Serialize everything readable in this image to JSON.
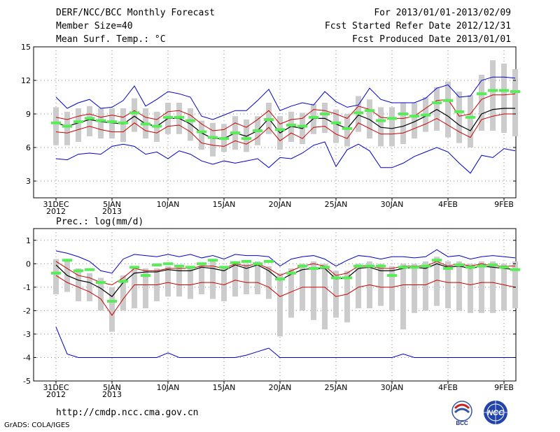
{
  "header": {
    "title": "DERF/NCC/BCC Monthly Forecast",
    "member_size": "Member Size=40",
    "variable": "Mean Surf. Temp.: °C",
    "period": "For 2013/01/01-2013/02/09",
    "started": "Fcst Started Refer Date 2012/12/31",
    "produced": "Fcst Produced Date 2013/01/01"
  },
  "precip_title": "Prec.: log(mm/d)",
  "footer": {
    "url": "http://cmdp.ncc.cma.gov.cn",
    "credit": "GrADS: COLA/IGES",
    "logo_left_text": "BCC",
    "logo_right_text": "NCC"
  },
  "colors": {
    "max_line": "#0000cc",
    "sd_line": "#cc0000",
    "mean_line": "#000000",
    "box": "#cccccc",
    "median_mark": "#55ee55"
  },
  "chart_data": [
    {
      "type": "box",
      "title": "Mean Surf. Temp.: °C",
      "x_ticks": [
        "31DEC\n2012",
        "5JAN\n2013",
        "10JAN",
        "15JAN",
        "20JAN",
        "25JAN",
        "30JAN",
        "4FEB",
        "9FEB"
      ],
      "x_tick_days": [
        0,
        5,
        10,
        15,
        20,
        25,
        30,
        35,
        40
      ],
      "y_ticks": [
        3,
        6,
        9,
        12,
        15
      ],
      "ylim": [
        1.5,
        15
      ],
      "grid": true,
      "series": [
        {
          "name": "max",
          "values": [
            10.5,
            9.5,
            10,
            10.3,
            9.5,
            9.6,
            10.2,
            11.5,
            9.7,
            10.3,
            11,
            10.8,
            10.5,
            8.8,
            8.5,
            8.9,
            9.3,
            9.3,
            10.2,
            11.2,
            9.3,
            9.7,
            10,
            9.8,
            11,
            10.1,
            9.6,
            9.8,
            11.3,
            10.3,
            10,
            10,
            10,
            10.4,
            11.3,
            11.6,
            10.5,
            10.6,
            12,
            12.3,
            12.3,
            12.2
          ]
        },
        {
          "name": "plus_sd",
          "values": [
            8.7,
            8.5,
            8.8,
            9,
            8.7,
            8.9,
            8.7,
            9.3,
            8.7,
            8.5,
            9.2,
            9.3,
            8.9,
            8.1,
            7.5,
            7.6,
            8.2,
            7.8,
            8.5,
            9.3,
            8.1,
            8.5,
            8.6,
            9.4,
            9.3,
            9,
            8.6,
            9.7,
            9.4,
            8.7,
            8.6,
            8.6,
            8.8,
            9.5,
            10.2,
            10.3,
            8.8,
            9,
            10.3,
            10.7,
            10.7,
            10.8
          ]
        },
        {
          "name": "mean",
          "values": [
            8.2,
            7.9,
            8.2,
            8.5,
            8.3,
            8.2,
            8.1,
            8.8,
            8.1,
            7.9,
            8.6,
            8.6,
            8.1,
            7.3,
            6.8,
            6.8,
            7.3,
            7,
            7.5,
            8.6,
            7.3,
            7.9,
            7.7,
            8.6,
            8.6,
            8.1,
            7.7,
            8.9,
            8.5,
            7.8,
            7.7,
            7.9,
            8.3,
            8.8,
            9.4,
            8.8,
            8,
            7.5,
            9,
            9.4,
            9.5,
            9.5
          ]
        },
        {
          "name": "minus_sd",
          "values": [
            7.4,
            7.3,
            7.6,
            7.9,
            7.6,
            7.4,
            7.4,
            8.2,
            7.5,
            7.3,
            7.9,
            8,
            7.4,
            6.4,
            6.2,
            6.1,
            6.6,
            6.3,
            6.9,
            7.8,
            6.6,
            7.3,
            6.8,
            7.8,
            7.9,
            7.2,
            6.8,
            8.2,
            7.7,
            7.2,
            7.2,
            7.3,
            7.7,
            8.1,
            8.6,
            8,
            7.4,
            6.9,
            8.5,
            8.8,
            9,
            9
          ]
        },
        {
          "name": "min",
          "values": [
            5,
            4.9,
            5.4,
            5.5,
            5.4,
            6.1,
            6.3,
            6.1,
            5.4,
            5.6,
            5,
            5.7,
            5.4,
            4.8,
            4.5,
            4.8,
            4.6,
            4.8,
            5,
            4.2,
            5.1,
            5,
            5.5,
            6.2,
            6.5,
            4.3,
            5.8,
            6.3,
            5.7,
            4.2,
            4.2,
            4.6,
            5.2,
            5.6,
            6,
            5.6,
            4.6,
            3.7,
            5.3,
            5.1,
            5.9,
            5.7
          ]
        },
        {
          "name": "box_high",
          "values": [
            9.6,
            9.2,
            9.5,
            9.7,
            9.5,
            9.5,
            9.5,
            10.4,
            9.5,
            9.2,
            10,
            10,
            9.5,
            8.4,
            8.2,
            8.1,
            8.8,
            8.5,
            8.8,
            10,
            8.8,
            9.2,
            9.1,
            9.9,
            10,
            9.4,
            9,
            10.6,
            10.3,
            9.6,
            9.6,
            10,
            10,
            10.5,
            11.4,
            11.9,
            11,
            10.7,
            12.5,
            13.8,
            13.5,
            13
          ]
        },
        {
          "name": "box_low",
          "values": [
            6.2,
            6.2,
            6.5,
            7,
            6.8,
            6.8,
            6.5,
            7.4,
            6.8,
            6.5,
            7.2,
            7.2,
            6.6,
            5.8,
            5.2,
            5.6,
            5.8,
            5.6,
            6.2,
            7.2,
            5.8,
            6.5,
            6.3,
            7.2,
            7.3,
            6.4,
            6.1,
            7.4,
            6.8,
            6.1,
            6.1,
            6.3,
            6.8,
            7.4,
            7.5,
            6.9,
            6.4,
            6,
            7.5,
            7.5,
            7.3,
            7
          ]
        },
        {
          "name": "median",
          "values": [
            8.2,
            7.9,
            8.3,
            8.6,
            8.4,
            8.3,
            8.2,
            9.1,
            8.1,
            7.9,
            8.7,
            8.7,
            8.4,
            7.4,
            6.9,
            6.8,
            7.3,
            6.8,
            7.5,
            8.5,
            7.6,
            8,
            7.9,
            8.7,
            9,
            8.2,
            7.7,
            9.1,
            9.3,
            8.4,
            8.6,
            9,
            8.8,
            8.9,
            10,
            10.2,
            9.2,
            8.7,
            10.8,
            11.1,
            11.1,
            11
          ]
        }
      ]
    },
    {
      "type": "box",
      "title": "Prec.: log(mm/d)",
      "x_ticks": [
        "31DEC\n2012",
        "5JAN\n2013",
        "10JAN",
        "15JAN",
        "20JAN",
        "25JAN",
        "30JAN",
        "4FEB",
        "9FEB"
      ],
      "x_tick_days": [
        0,
        5,
        10,
        15,
        20,
        25,
        30,
        35,
        40
      ],
      "y_ticks": [
        -5,
        -4,
        -3,
        -2,
        -1,
        0,
        1
      ],
      "ylim": [
        -5,
        1.5
      ],
      "grid": true,
      "series": [
        {
          "name": "max",
          "values": [
            0.55,
            0.45,
            0.3,
            0.1,
            -0.3,
            -0.4,
            0.2,
            0.4,
            0.35,
            0.3,
            0.4,
            0.3,
            0.4,
            0.25,
            0.35,
            0.2,
            0.4,
            0.35,
            0.35,
            0.3,
            -0.1,
            0.2,
            0.3,
            0.35,
            0.2,
            -0.1,
            0.15,
            0.35,
            0.3,
            0.2,
            0.3,
            0.3,
            0.25,
            0.3,
            0.6,
            0.3,
            0.35,
            0.2,
            0.3,
            0.35,
            0.3,
            0.25
          ]
        },
        {
          "name": "plus_sd",
          "values": [
            0.1,
            -0.2,
            -0.5,
            -0.6,
            -0.8,
            -0.9,
            -0.6,
            -0.2,
            -0.3,
            -0.3,
            -0.2,
            -0.2,
            -0.2,
            -0.1,
            -0.1,
            -0.2,
            0,
            -0.1,
            0,
            -0.2,
            -0.5,
            -0.3,
            -0.1,
            0,
            -0.1,
            -0.5,
            -0.4,
            -0.1,
            -0.1,
            -0.2,
            -0.2,
            -0.1,
            -0.1,
            -0.1,
            0.1,
            -0.1,
            0,
            -0.1,
            0,
            -0.1,
            -0.1,
            -0.1
          ]
        },
        {
          "name": "mean",
          "values": [
            -0.05,
            -0.5,
            -0.7,
            -0.8,
            -1.05,
            -1.4,
            -0.8,
            -0.4,
            -0.35,
            -0.35,
            -0.25,
            -0.3,
            -0.3,
            -0.15,
            -0.2,
            -0.3,
            -0.05,
            -0.2,
            -0.05,
            -0.3,
            -0.7,
            -0.45,
            -0.25,
            -0.2,
            -0.2,
            -0.65,
            -0.6,
            -0.2,
            -0.15,
            -0.3,
            -0.3,
            -0.2,
            -0.15,
            -0.2,
            0,
            -0.15,
            -0.1,
            -0.2,
            -0.1,
            -0.15,
            -0.2,
            -0.25
          ]
        },
        {
          "name": "minus_sd",
          "values": [
            -0.5,
            -0.8,
            -1,
            -1.2,
            -1.5,
            -2.2,
            -1.5,
            -0.9,
            -0.9,
            -0.9,
            -0.8,
            -0.9,
            -0.9,
            -0.8,
            -0.8,
            -0.9,
            -0.7,
            -0.8,
            -0.8,
            -1,
            -1.4,
            -1.2,
            -1,
            -1,
            -1,
            -1.4,
            -1.3,
            -1,
            -0.9,
            -1,
            -1,
            -0.9,
            -0.9,
            -0.9,
            -0.7,
            -0.8,
            -0.8,
            -0.9,
            -0.8,
            -0.8,
            -0.9,
            -1
          ]
        },
        {
          "name": "min",
          "values": [
            -2.7,
            -3.85,
            -4,
            -4,
            -4,
            -4,
            -4,
            -4,
            -4,
            -4,
            -3.8,
            -4,
            -4,
            -4,
            -4,
            -4,
            -4,
            -3.9,
            -3.75,
            -3.6,
            -4,
            -4,
            -4,
            -4,
            -4,
            -4,
            -4,
            -4,
            -4,
            -4,
            -4,
            -3.85,
            -4,
            -4,
            -4,
            -4,
            -4,
            -4,
            -4,
            -4,
            -4,
            -4
          ]
        },
        {
          "name": "box_high",
          "values": [
            0.2,
            0.1,
            -0.2,
            -0.4,
            -0.6,
            -1,
            -0.5,
            -0.1,
            -0.2,
            -0.2,
            -0.1,
            -0.1,
            -0.1,
            0,
            0.1,
            -0.1,
            0.1,
            0,
            0.1,
            -0.1,
            -0.4,
            -0.2,
            0,
            0.1,
            0,
            -0.3,
            -0.3,
            0,
            0.1,
            0,
            -0.1,
            0,
            0,
            0.1,
            0.3,
            0.1,
            0.1,
            0,
            0.1,
            0.1,
            0,
            0.1
          ]
        },
        {
          "name": "box_low",
          "values": [
            -1.3,
            -1.2,
            -1.6,
            -1.6,
            -2,
            -2.9,
            -2,
            -1.9,
            -1.9,
            -1.6,
            -1.4,
            -1.4,
            -1.5,
            -1.3,
            -1.5,
            -1.6,
            -1.4,
            -1.3,
            -1.3,
            -1.5,
            -3.1,
            -2.3,
            -2,
            -2.4,
            -2.8,
            -2.3,
            -2.5,
            -1.9,
            -1.9,
            -1.8,
            -2,
            -2.8,
            -2.1,
            -2,
            -1.8,
            -1.9,
            -2,
            -2.1,
            -2.1,
            -2.1,
            -2,
            -1.9
          ]
        },
        {
          "name": "median",
          "values": [
            -0.4,
            0.15,
            -0.3,
            -0.25,
            -0.8,
            -1.6,
            -0.75,
            -0.15,
            -0.5,
            -0.05,
            0,
            -0.1,
            -0.15,
            0,
            0.15,
            -0.15,
            0.05,
            0.1,
            0,
            0.1,
            -0.65,
            -0.4,
            -0.1,
            -0.2,
            -0.15,
            -0.6,
            -0.6,
            -0.1,
            -0.1,
            -0.1,
            -0.5,
            -0.15,
            -0.15,
            -0.1,
            0.15,
            -0.2,
            -0.05,
            -0.15,
            -0.1,
            -0.05,
            -0.15,
            -0.25
          ]
        }
      ]
    }
  ]
}
